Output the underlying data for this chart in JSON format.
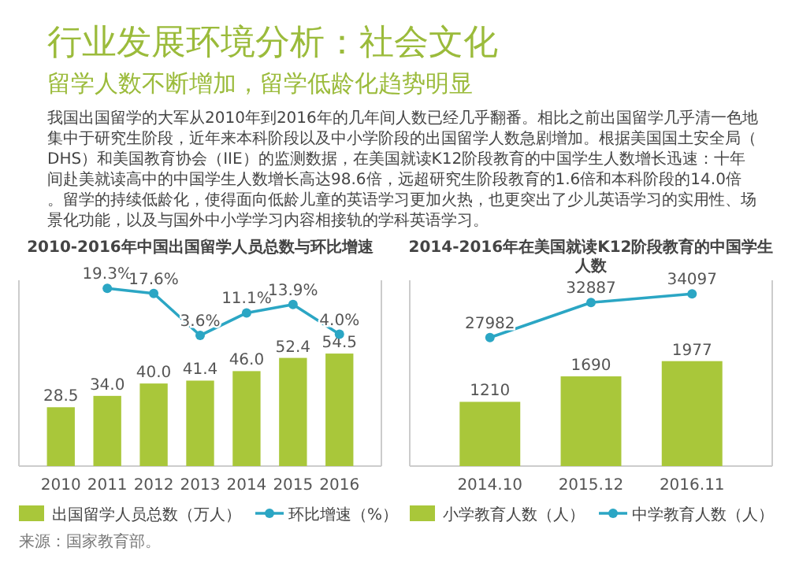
{
  "chart_data": [
    {
      "type": "other",
      "title": "行业发展环境分析：社会文化",
      "subtitle": "留学人数不断增加，留学低龄化趋势明显",
      "annotations": [
        "我国出国留学的大军从2010年到2016年的几年间人数已经几乎翻番。相比之前出国留学几乎清一色地集中于研究生阶段，近年来本科阶段以及中小学阶段的出国留学人数急剧增加。根据美国国土安全局（DHS）和美国教育协会（IIE）的监测数据，在美国就读K12阶段教育的中国学生人数增长迅速：十年间赴美就读高中的中国学生人数增长高达98.6倍，远超研究生阶段教育的1.6倍和本科阶段的14.0倍。留学的持续低龄化，使得面向低龄儿童的英语学习更加火热，也更突出了少儿英语学习的实用性、场景化功能，以及与国外中小学学习内容相接轨的学科英语学习。"
      ]
    },
    {
      "type": "bar",
      "title": "2010-2016年中国出国留学人员总数与环比增速",
      "categories": [
        "2010",
        "2011",
        "2012",
        "2013",
        "2014",
        "2015",
        "2016"
      ],
      "tick_labels": "x",
      "ylim": [
        0,
        90
      ],
      "y2lim": [
        -40,
        22
      ],
      "legend": "bottom",
      "marker": "circle",
      "annotations": [
        "来源：国家教育部。"
      ],
      "series": [
        {
          "name": "出国留学人员总数（万人）",
          "color": "#a9c73a",
          "values": [
            28.5,
            34.0,
            40.0,
            41.4,
            46.0,
            52.4,
            54.5
          ],
          "value_labels": [
            "28.5",
            "34.0",
            "40.0",
            "41.4",
            "46.0",
            "52.4",
            "54.5"
          ]
        },
        {
          "name": "环比增速（%）",
          "type": "line",
          "axis": "y2",
          "color": "#2ba6c4",
          "values": [
            null,
            19.3,
            17.6,
            3.6,
            11.1,
            13.9,
            4.0
          ],
          "value_labels": [
            null,
            "19.3%",
            "17.6%",
            "3.6%",
            "11.1%",
            "13.9%",
            "4.0%"
          ]
        }
      ]
    },
    {
      "type": "bar",
      "title": "2014-2016年在美国就读K12阶段教育的中国学生人数",
      "categories": [
        "2014.10",
        "2015.12",
        "2016.11"
      ],
      "tick_labels": "x",
      "ylim": [
        0,
        3500
      ],
      "y2lim": [
        10000,
        36000
      ],
      "legend": "bottom",
      "marker": "circle",
      "series": [
        {
          "name": "小学教育人数（人）",
          "color": "#a9c73a",
          "values": [
            1210,
            1690,
            1977
          ],
          "value_labels": [
            "1210",
            "1690",
            "1977"
          ]
        },
        {
          "name": "中学教育人数（人）",
          "type": "line",
          "axis": "y2",
          "color": "#2ba6c4",
          "values": [
            27982,
            32887,
            34097
          ],
          "value_labels": [
            "27982",
            "32887",
            "34097"
          ]
        }
      ]
    }
  ]
}
